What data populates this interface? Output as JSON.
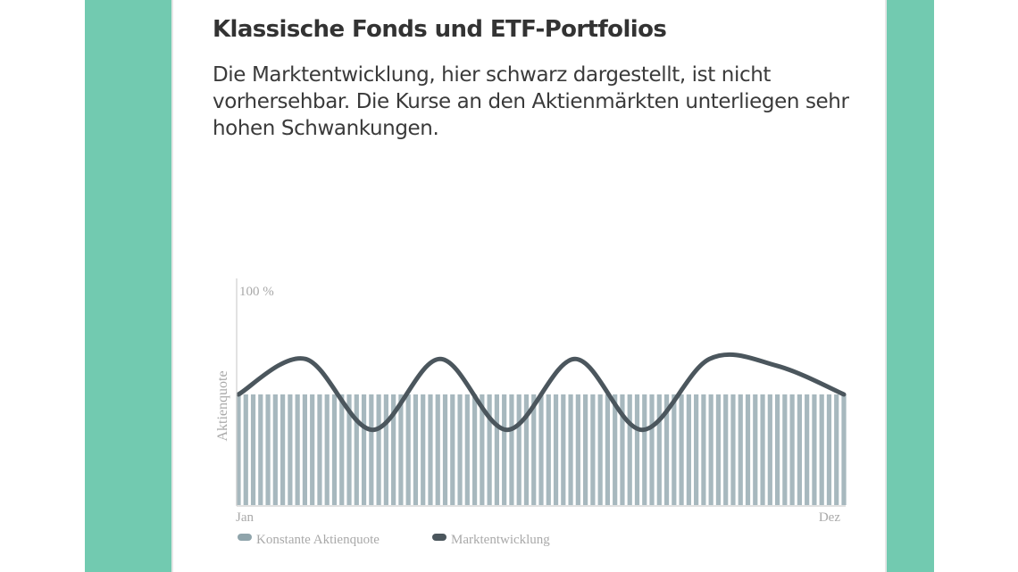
{
  "card": {
    "title": "Klassische Fonds und ETF-Portfolios",
    "description": "Die Marktentwicklung, hier schwarz dargestellt, ist nicht vorhersehbar. Die Kurse an den Aktienmärkten unterliegen sehr hohen Schwankungen."
  },
  "colors": {
    "accent_band": "#72cab0",
    "bars": "#a7b8be",
    "line": "#4b565d",
    "axis_text": "#a9a9a9",
    "legend_bar_swatch": "#8fa4ab"
  },
  "chart_data": {
    "type": "bar",
    "bar_count": 83,
    "bar_value_percent": 50,
    "y_tick_label": "100 %",
    "ylabel": "Aktienquote",
    "x_start_label": "Jan",
    "x_end_label": "Dez",
    "ylim": [
      0,
      100
    ],
    "grid": false,
    "legend_position": "bottom-left",
    "series": [
      {
        "name": "Konstante Aktienquote",
        "type": "bar"
      },
      {
        "name": "Marktentwicklung",
        "type": "line",
        "x": [
          0,
          0.111,
          0.222,
          0.333,
          0.444,
          0.556,
          0.667,
          0.778,
          0.889,
          1.0
        ],
        "y": [
          50,
          66,
          34,
          66,
          34,
          66,
          34,
          66,
          63,
          50
        ]
      }
    ],
    "legend": [
      "Konstante Aktienquote",
      "Marktentwicklung"
    ]
  }
}
